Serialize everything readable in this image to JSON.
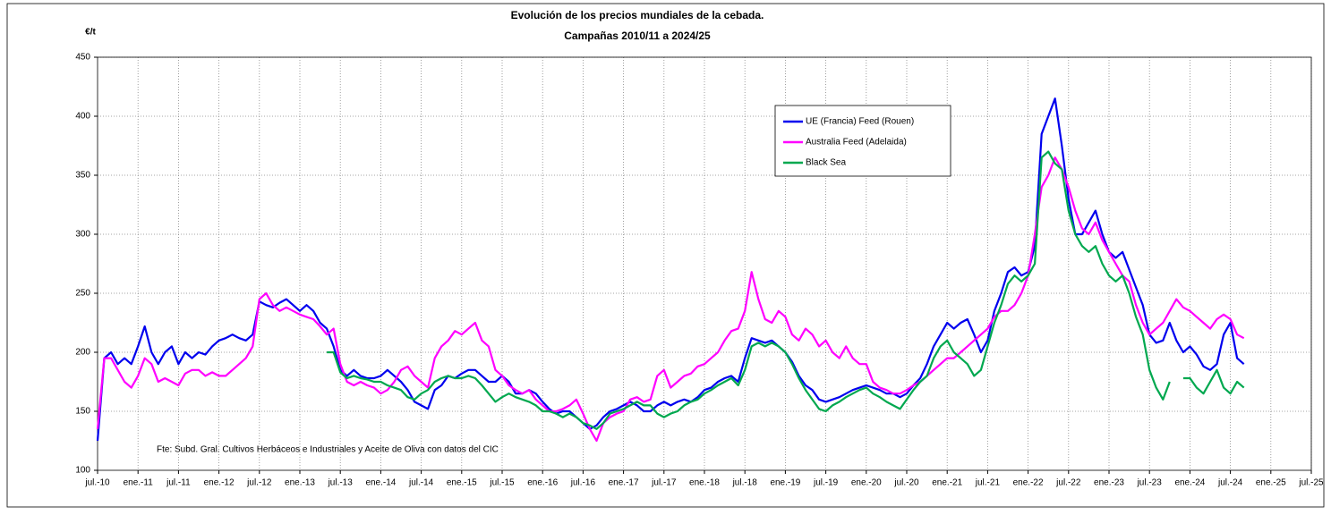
{
  "chart_data": {
    "type": "line",
    "title": "Evolución de los precios mundiales de la cebada.",
    "subtitle": "Campañas 2010/11 a 2024/25",
    "y_label": "€/t",
    "annotation": "Fte: Subd. Gral. Cultivos Herbáceos e Industriales y Aceite de Oliva con datos del CIC",
    "ylim": [
      100,
      450
    ],
    "yticks": [
      100,
      150,
      200,
      250,
      300,
      350,
      400,
      450
    ],
    "grid": true,
    "categories": [
      "jul.-10",
      null,
      null,
      null,
      null,
      null,
      "ene.-11",
      null,
      null,
      null,
      null,
      null,
      "jul.-11",
      null,
      null,
      null,
      null,
      null,
      "ene.-12",
      null,
      null,
      null,
      null,
      null,
      "jul.-12",
      null,
      null,
      null,
      null,
      null,
      "ene.-13",
      null,
      null,
      null,
      null,
      null,
      "jul.-13",
      null,
      null,
      null,
      null,
      null,
      "ene.-14",
      null,
      null,
      null,
      null,
      null,
      "jul.-14",
      null,
      null,
      null,
      null,
      null,
      "ene.-15",
      null,
      null,
      null,
      null,
      null,
      "jul.-15",
      null,
      null,
      null,
      null,
      null,
      "ene.-16",
      null,
      null,
      null,
      null,
      null,
      "jul.-16",
      null,
      null,
      null,
      null,
      null,
      "ene.-17",
      null,
      null,
      null,
      null,
      null,
      "jul.-17",
      null,
      null,
      null,
      null,
      null,
      "ene.-18",
      null,
      null,
      null,
      null,
      null,
      "jul.-18",
      null,
      null,
      null,
      null,
      null,
      "ene.-19",
      null,
      null,
      null,
      null,
      null,
      "jul.-19",
      null,
      null,
      null,
      null,
      null,
      "ene.-20",
      null,
      null,
      null,
      null,
      null,
      "jul.-20",
      null,
      null,
      null,
      null,
      null,
      "ene.-21",
      null,
      null,
      null,
      null,
      null,
      "jul.-21",
      null,
      null,
      null,
      null,
      null,
      "ene.-22",
      null,
      null,
      null,
      null,
      null,
      "jul.-22",
      null,
      null,
      null,
      null,
      null,
      "ene.-23",
      null,
      null,
      null,
      null,
      null,
      "jul.-23",
      null,
      null,
      null,
      null,
      null,
      "ene.-24",
      null,
      null,
      null,
      null,
      null,
      "jul.-24",
      null,
      null,
      null,
      null,
      null,
      "ene.-25",
      null,
      null,
      null,
      null,
      null,
      "jul.-25"
    ],
    "series": [
      {
        "name": "UE (Francia) Feed (Rouen)",
        "color": "#0000ee",
        "values": [
          125,
          195,
          200,
          190,
          195,
          190,
          205,
          222,
          200,
          190,
          200,
          205,
          190,
          200,
          195,
          200,
          198,
          205,
          210,
          212,
          215,
          212,
          210,
          215,
          243,
          240,
          238,
          242,
          245,
          240,
          235,
          240,
          235,
          225,
          220,
          205,
          185,
          180,
          185,
          180,
          178,
          178,
          180,
          185,
          180,
          175,
          168,
          158,
          155,
          152,
          168,
          172,
          180,
          178,
          182,
          185,
          185,
          180,
          175,
          175,
          180,
          175,
          165,
          165,
          168,
          165,
          158,
          152,
          148,
          150,
          150,
          145,
          140,
          135,
          138,
          145,
          150,
          152,
          155,
          158,
          155,
          150,
          150,
          155,
          158,
          155,
          158,
          160,
          158,
          162,
          168,
          170,
          175,
          178,
          180,
          175,
          195,
          212,
          210,
          208,
          210,
          205,
          200,
          192,
          180,
          172,
          168,
          160,
          158,
          160,
          162,
          165,
          168,
          170,
          172,
          170,
          168,
          165,
          165,
          162,
          165,
          172,
          178,
          190,
          205,
          215,
          225,
          220,
          225,
          228,
          215,
          200,
          210,
          235,
          250,
          268,
          272,
          265,
          268,
          290,
          385,
          400,
          415,
          375,
          330,
          300,
          300,
          310,
          320,
          300,
          285,
          280,
          285,
          270,
          255,
          240,
          215,
          208,
          210,
          225,
          210,
          200,
          205,
          198,
          188,
          185,
          190,
          215,
          225,
          195,
          190,
          null,
          null,
          null,
          null,
          null,
          null,
          null,
          null,
          null,
          null
        ]
      },
      {
        "name": "Australia Feed (Adelaida)",
        "color": "#ff00ff",
        "values": [
          135,
          195,
          195,
          185,
          175,
          170,
          180,
          195,
          190,
          175,
          178,
          175,
          172,
          182,
          185,
          185,
          180,
          183,
          180,
          180,
          185,
          190,
          195,
          205,
          245,
          250,
          240,
          235,
          238,
          235,
          232,
          230,
          228,
          222,
          215,
          220,
          190,
          175,
          172,
          175,
          172,
          170,
          165,
          168,
          175,
          185,
          188,
          180,
          175,
          170,
          195,
          205,
          210,
          218,
          215,
          220,
          225,
          210,
          205,
          185,
          180,
          172,
          168,
          165,
          168,
          160,
          155,
          150,
          150,
          152,
          155,
          160,
          148,
          135,
          125,
          140,
          145,
          148,
          150,
          160,
          162,
          158,
          160,
          180,
          185,
          170,
          175,
          180,
          182,
          188,
          190,
          195,
          200,
          210,
          218,
          220,
          235,
          268,
          245,
          228,
          225,
          235,
          230,
          215,
          210,
          220,
          215,
          205,
          210,
          200,
          195,
          205,
          195,
          190,
          190,
          175,
          170,
          168,
          165,
          165,
          168,
          172,
          175,
          180,
          185,
          190,
          195,
          195,
          200,
          205,
          210,
          215,
          220,
          230,
          235,
          235,
          240,
          250,
          265,
          300,
          340,
          350,
          365,
          355,
          340,
          320,
          305,
          300,
          310,
          295,
          285,
          275,
          265,
          260,
          240,
          225,
          215,
          220,
          225,
          235,
          245,
          238,
          235,
          230,
          225,
          220,
          228,
          232,
          228,
          215,
          212,
          null,
          null,
          null,
          null,
          null,
          null,
          null,
          null,
          null,
          null
        ]
      },
      {
        "name": "Black Sea",
        "color": "#00a84f",
        "values": [
          null,
          null,
          null,
          null,
          null,
          null,
          null,
          null,
          null,
          null,
          null,
          null,
          null,
          null,
          null,
          null,
          null,
          null,
          null,
          null,
          null,
          null,
          null,
          null,
          null,
          null,
          null,
          null,
          null,
          null,
          null,
          null,
          null,
          null,
          200,
          200,
          183,
          178,
          180,
          178,
          177,
          175,
          175,
          172,
          170,
          168,
          162,
          160,
          165,
          168,
          175,
          178,
          180,
          178,
          178,
          180,
          178,
          172,
          165,
          158,
          162,
          165,
          162,
          160,
          158,
          155,
          150,
          150,
          148,
          145,
          148,
          145,
          140,
          138,
          135,
          140,
          148,
          150,
          152,
          155,
          158,
          155,
          155,
          148,
          145,
          148,
          150,
          155,
          158,
          160,
          165,
          168,
          172,
          175,
          178,
          172,
          185,
          205,
          208,
          205,
          208,
          205,
          200,
          190,
          178,
          168,
          160,
          152,
          150,
          155,
          158,
          162,
          165,
          168,
          170,
          165,
          162,
          158,
          155,
          152,
          160,
          168,
          175,
          180,
          195,
          205,
          210,
          200,
          195,
          190,
          180,
          185,
          205,
          225,
          240,
          258,
          265,
          260,
          265,
          275,
          365,
          370,
          360,
          355,
          320,
          300,
          290,
          285,
          290,
          275,
          265,
          260,
          265,
          250,
          230,
          215,
          185,
          170,
          160,
          175,
          null,
          178,
          178,
          170,
          165,
          175,
          185,
          170,
          165,
          175,
          170,
          null,
          null,
          null,
          null,
          null,
          null,
          null,
          null,
          null,
          null
        ]
      }
    ]
  }
}
